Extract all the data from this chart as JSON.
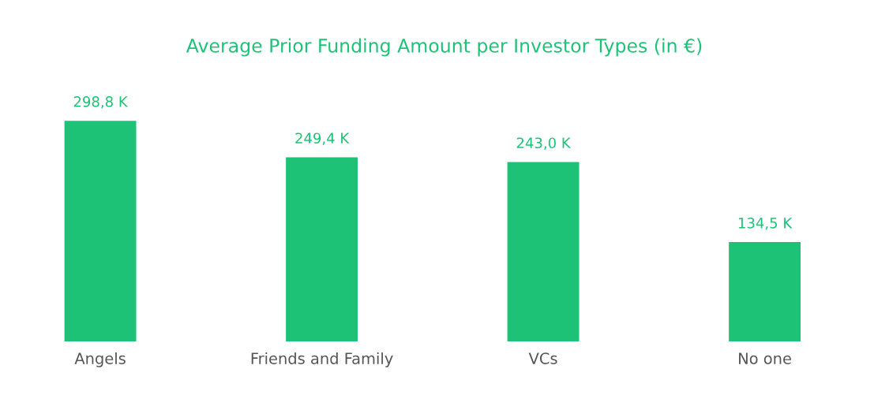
{
  "chart_data": {
    "type": "bar",
    "title": "Average Prior Funding Amount per Investor Types (in €)",
    "categories": [
      "Angels",
      "Friends and Family",
      "VCs",
      "No one"
    ],
    "values": [
      298.8,
      249.4,
      243.0,
      134.5
    ],
    "value_labels": [
      "298,8 K",
      "249,4 K",
      "243,0 K",
      "134,5 K"
    ],
    "color": "#1ec276",
    "grid": false,
    "legend": false
  }
}
